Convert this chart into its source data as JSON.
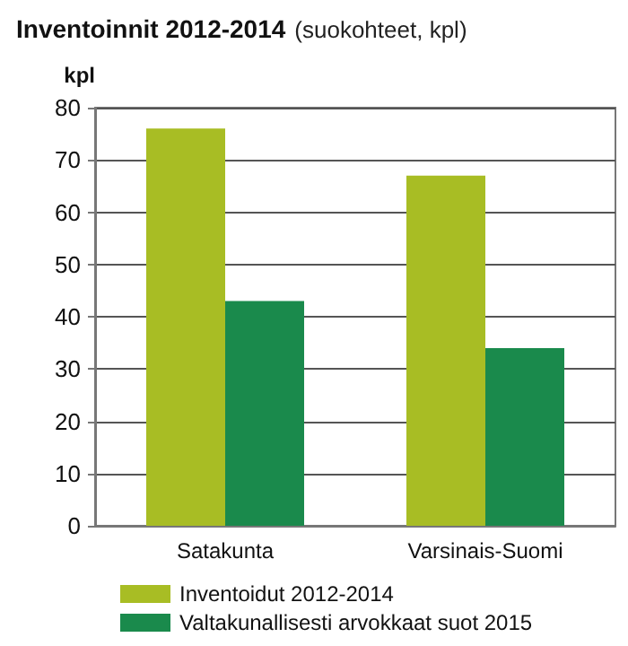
{
  "chart_data": {
    "type": "bar",
    "title": "Inventoinnit 2012-2014",
    "subtitle": "(suokohteet, kpl)",
    "ylabel": "kpl",
    "categories": [
      "Satakunta",
      "Varsinais-Suomi"
    ],
    "series": [
      {
        "name": "Inventoidut 2012-2014",
        "color": "#a8bd24",
        "values": [
          76,
          67
        ]
      },
      {
        "name": "Valtakunallisesti arvokkaat suot 2015",
        "color": "#1a8a4c",
        "values": [
          43,
          34
        ]
      }
    ],
    "ylim": [
      0,
      80
    ],
    "yticks": [
      0,
      10,
      20,
      30,
      40,
      50,
      60,
      70,
      80
    ],
    "grid": "y",
    "legend": "bottom"
  }
}
